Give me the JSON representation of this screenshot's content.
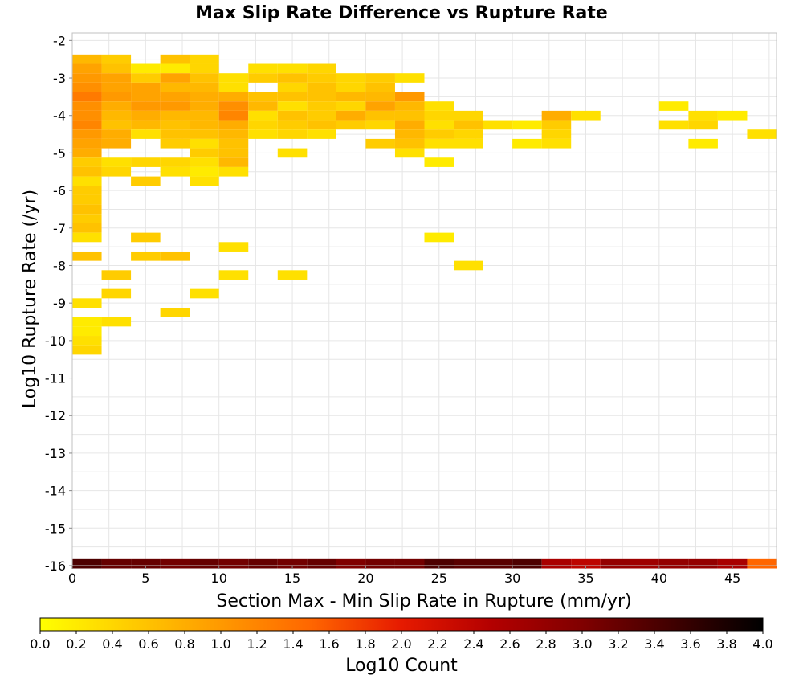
{
  "chart_data": {
    "type": "heatmap",
    "title": "Max Slip Rate Difference vs Rupture Rate",
    "xlabel": "Section Max - Min Slip Rate in Rupture (mm/yr)",
    "ylabel": "Log10 Rupture Rate (/yr)",
    "xlim": [
      0,
      48
    ],
    "ylim": [
      -16,
      -1.8
    ],
    "x_ticks": [
      0,
      5,
      10,
      15,
      20,
      25,
      30,
      35,
      40,
      45
    ],
    "y_ticks": [
      -2,
      -3,
      -4,
      -5,
      -6,
      -7,
      -8,
      -9,
      -10,
      -11,
      -12,
      -13,
      -14,
      -15,
      -16
    ],
    "cell_width": 2,
    "cell_height": 0.25,
    "grid": true,
    "colorbar": {
      "label": "Log10 Count",
      "min": 0.0,
      "max": 4.0,
      "ticks": [
        "0.0",
        "0.2",
        "0.4",
        "0.6",
        "0.8",
        "1.0",
        "1.2",
        "1.4",
        "1.6",
        "1.8",
        "2.0",
        "2.2",
        "2.4",
        "2.6",
        "2.8",
        "3.0",
        "3.2",
        "3.4",
        "3.6",
        "3.8",
        "4.0"
      ],
      "stops": [
        "#ffff00",
        "#ffcc00",
        "#ff9900",
        "#ff6600",
        "#e61a00",
        "#b30000",
        "#800000",
        "#400000",
        "#000000"
      ]
    },
    "cells": [
      [
        0,
        -2.5,
        0.7
      ],
      [
        2,
        -2.5,
        0.5
      ],
      [
        6,
        -2.5,
        0.6
      ],
      [
        8,
        -2.5,
        0.4
      ],
      [
        0,
        -2.75,
        0.9
      ],
      [
        2,
        -2.75,
        0.6
      ],
      [
        4,
        -2.75,
        0.2
      ],
      [
        6,
        -2.75,
        0.2
      ],
      [
        8,
        -2.75,
        0.4
      ],
      [
        12,
        -2.75,
        0.3
      ],
      [
        14,
        -2.75,
        0.3
      ],
      [
        16,
        -2.75,
        0.4
      ],
      [
        0,
        -3.0,
        1.0
      ],
      [
        2,
        -3.0,
        0.9
      ],
      [
        4,
        -3.0,
        0.5
      ],
      [
        6,
        -3.0,
        0.9
      ],
      [
        8,
        -3.0,
        0.6
      ],
      [
        10,
        -3.0,
        0.3
      ],
      [
        12,
        -3.0,
        0.5
      ],
      [
        14,
        -3.0,
        0.6
      ],
      [
        16,
        -3.0,
        0.5
      ],
      [
        18,
        -3.0,
        0.4
      ],
      [
        20,
        -3.0,
        0.5
      ],
      [
        22,
        -3.0,
        0.3
      ],
      [
        0,
        -3.25,
        1.1
      ],
      [
        2,
        -3.25,
        0.9
      ],
      [
        4,
        -3.25,
        0.9
      ],
      [
        6,
        -3.25,
        0.7
      ],
      [
        8,
        -3.25,
        0.7
      ],
      [
        10,
        -3.25,
        0.3
      ],
      [
        14,
        -3.25,
        0.4
      ],
      [
        16,
        -3.25,
        0.6
      ],
      [
        18,
        -3.25,
        0.4
      ],
      [
        20,
        -3.25,
        0.6
      ],
      [
        0,
        -3.5,
        1.3
      ],
      [
        2,
        -3.5,
        1.0
      ],
      [
        4,
        -3.5,
        0.9
      ],
      [
        6,
        -3.5,
        0.9
      ],
      [
        8,
        -3.5,
        0.8
      ],
      [
        10,
        -3.5,
        0.8
      ],
      [
        12,
        -3.5,
        0.6
      ],
      [
        14,
        -3.5,
        0.6
      ],
      [
        16,
        -3.5,
        0.6
      ],
      [
        18,
        -3.5,
        0.7
      ],
      [
        20,
        -3.5,
        0.7
      ],
      [
        22,
        -3.5,
        1.0
      ],
      [
        0,
        -3.75,
        1.1
      ],
      [
        2,
        -3.75,
        0.8
      ],
      [
        4,
        -3.75,
        1.0
      ],
      [
        6,
        -3.75,
        1.0
      ],
      [
        8,
        -3.75,
        0.8
      ],
      [
        10,
        -3.75,
        1.1
      ],
      [
        12,
        -3.75,
        0.7
      ],
      [
        14,
        -3.75,
        0.3
      ],
      [
        16,
        -3.75,
        0.5
      ],
      [
        18,
        -3.75,
        0.4
      ],
      [
        20,
        -3.75,
        0.9
      ],
      [
        22,
        -3.75,
        0.7
      ],
      [
        24,
        -3.75,
        0.3
      ],
      [
        40,
        -3.75,
        0.2
      ],
      [
        0,
        -4.0,
        1.1
      ],
      [
        2,
        -4.0,
        0.7
      ],
      [
        4,
        -4.0,
        0.8
      ],
      [
        6,
        -4.0,
        0.7
      ],
      [
        8,
        -4.0,
        0.7
      ],
      [
        10,
        -4.0,
        1.2
      ],
      [
        12,
        -4.0,
        0.3
      ],
      [
        14,
        -4.0,
        0.6
      ],
      [
        16,
        -4.0,
        0.5
      ],
      [
        18,
        -4.0,
        0.8
      ],
      [
        20,
        -4.0,
        0.6
      ],
      [
        22,
        -4.0,
        0.6
      ],
      [
        24,
        -4.0,
        0.4
      ],
      [
        26,
        -4.0,
        0.4
      ],
      [
        32,
        -4.0,
        0.8
      ],
      [
        34,
        -4.0,
        0.3
      ],
      [
        42,
        -4.0,
        0.3
      ],
      [
        44,
        -4.0,
        0.2
      ],
      [
        0,
        -4.25,
        1.2
      ],
      [
        2,
        -4.25,
        0.6
      ],
      [
        4,
        -4.25,
        0.7
      ],
      [
        6,
        -4.25,
        0.6
      ],
      [
        8,
        -4.25,
        0.7
      ],
      [
        10,
        -4.25,
        0.8
      ],
      [
        12,
        -4.25,
        0.4
      ],
      [
        14,
        -4.25,
        0.5
      ],
      [
        16,
        -4.25,
        0.6
      ],
      [
        18,
        -4.25,
        0.5
      ],
      [
        20,
        -4.25,
        0.4
      ],
      [
        22,
        -4.25,
        0.8
      ],
      [
        24,
        -4.25,
        0.3
      ],
      [
        26,
        -4.25,
        0.6
      ],
      [
        28,
        -4.25,
        0.3
      ],
      [
        30,
        -4.25,
        0.2
      ],
      [
        32,
        -4.25,
        0.5
      ],
      [
        40,
        -4.25,
        0.3
      ],
      [
        42,
        -4.25,
        0.4
      ],
      [
        0,
        -4.5,
        1.0
      ],
      [
        2,
        -4.5,
        0.8
      ],
      [
        4,
        -4.5,
        0.3
      ],
      [
        6,
        -4.5,
        0.6
      ],
      [
        8,
        -4.5,
        0.6
      ],
      [
        10,
        -4.5,
        0.7
      ],
      [
        12,
        -4.5,
        0.3
      ],
      [
        14,
        -4.5,
        0.4
      ],
      [
        16,
        -4.5,
        0.3
      ],
      [
        22,
        -4.5,
        0.7
      ],
      [
        24,
        -4.5,
        0.5
      ],
      [
        26,
        -4.5,
        0.4
      ],
      [
        32,
        -4.5,
        0.4
      ],
      [
        46,
        -4.5,
        0.3
      ],
      [
        0,
        -4.75,
        0.9
      ],
      [
        2,
        -4.75,
        0.8
      ],
      [
        6,
        -4.75,
        0.5
      ],
      [
        8,
        -4.75,
        0.3
      ],
      [
        10,
        -4.75,
        0.6
      ],
      [
        20,
        -4.75,
        0.5
      ],
      [
        22,
        -4.75,
        0.6
      ],
      [
        24,
        -4.75,
        0.3
      ],
      [
        26,
        -4.75,
        0.3
      ],
      [
        30,
        -4.75,
        0.2
      ],
      [
        32,
        -4.75,
        0.3
      ],
      [
        42,
        -4.75,
        0.2
      ],
      [
        0,
        -5.0,
        0.8
      ],
      [
        8,
        -5.0,
        0.5
      ],
      [
        10,
        -5.0,
        0.6
      ],
      [
        14,
        -5.0,
        0.3
      ],
      [
        22,
        -5.0,
        0.3
      ],
      [
        0,
        -5.25,
        0.5
      ],
      [
        2,
        -5.25,
        0.3
      ],
      [
        4,
        -5.25,
        0.4
      ],
      [
        6,
        -5.25,
        0.4
      ],
      [
        8,
        -5.25,
        0.3
      ],
      [
        10,
        -5.25,
        0.7
      ],
      [
        24,
        -5.25,
        0.2
      ],
      [
        0,
        -5.5,
        0.6
      ],
      [
        2,
        -5.5,
        0.4
      ],
      [
        6,
        -5.5,
        0.3
      ],
      [
        8,
        -5.5,
        0.2
      ],
      [
        10,
        -5.5,
        0.3
      ],
      [
        0,
        -5.75,
        0.3
      ],
      [
        4,
        -5.75,
        0.5
      ],
      [
        8,
        -5.75,
        0.3
      ],
      [
        0,
        -6.0,
        0.5
      ],
      [
        0,
        -6.25,
        0.5
      ],
      [
        0,
        -6.5,
        0.6
      ],
      [
        0,
        -6.75,
        0.5
      ],
      [
        0,
        -7.0,
        0.6
      ],
      [
        0,
        -7.25,
        0.3
      ],
      [
        4,
        -7.25,
        0.5
      ],
      [
        24,
        -7.25,
        0.2
      ],
      [
        10,
        -7.5,
        0.3
      ],
      [
        0,
        -7.75,
        0.6
      ],
      [
        4,
        -7.75,
        0.5
      ],
      [
        6,
        -7.75,
        0.6
      ],
      [
        26,
        -8.0,
        0.3
      ],
      [
        2,
        -8.25,
        0.5
      ],
      [
        10,
        -8.25,
        0.3
      ],
      [
        14,
        -8.25,
        0.3
      ],
      [
        2,
        -8.75,
        0.4
      ],
      [
        8,
        -8.75,
        0.3
      ],
      [
        0,
        -9.0,
        0.3
      ],
      [
        6,
        -9.25,
        0.4
      ],
      [
        0,
        -9.5,
        0.2
      ],
      [
        2,
        -9.5,
        0.3
      ],
      [
        0,
        -9.75,
        0.2
      ],
      [
        0,
        -10.0,
        0.3
      ],
      [
        0,
        -10.25,
        0.4
      ],
      [
        0,
        -15.95,
        3.4
      ],
      [
        2,
        -15.95,
        3.2
      ],
      [
        4,
        -15.95,
        3.2
      ],
      [
        6,
        -15.95,
        3.1
      ],
      [
        8,
        -15.95,
        3.2
      ],
      [
        10,
        -15.95,
        3.1
      ],
      [
        12,
        -15.95,
        3.2
      ],
      [
        14,
        -15.95,
        3.1
      ],
      [
        16,
        -15.95,
        3.2
      ],
      [
        18,
        -15.95,
        3.0
      ],
      [
        20,
        -15.95,
        3.1
      ],
      [
        22,
        -15.95,
        3.1
      ],
      [
        24,
        -15.95,
        3.4
      ],
      [
        26,
        -15.95,
        3.3
      ],
      [
        28,
        -15.95,
        3.3
      ],
      [
        30,
        -15.95,
        3.4
      ],
      [
        32,
        -15.95,
        2.6
      ],
      [
        34,
        -15.95,
        2.4
      ],
      [
        36,
        -15.95,
        2.8
      ],
      [
        38,
        -15.95,
        2.7
      ],
      [
        40,
        -15.95,
        2.8
      ],
      [
        42,
        -15.95,
        2.8
      ],
      [
        44,
        -15.95,
        2.6
      ],
      [
        46,
        -15.95,
        1.5
      ]
    ]
  }
}
